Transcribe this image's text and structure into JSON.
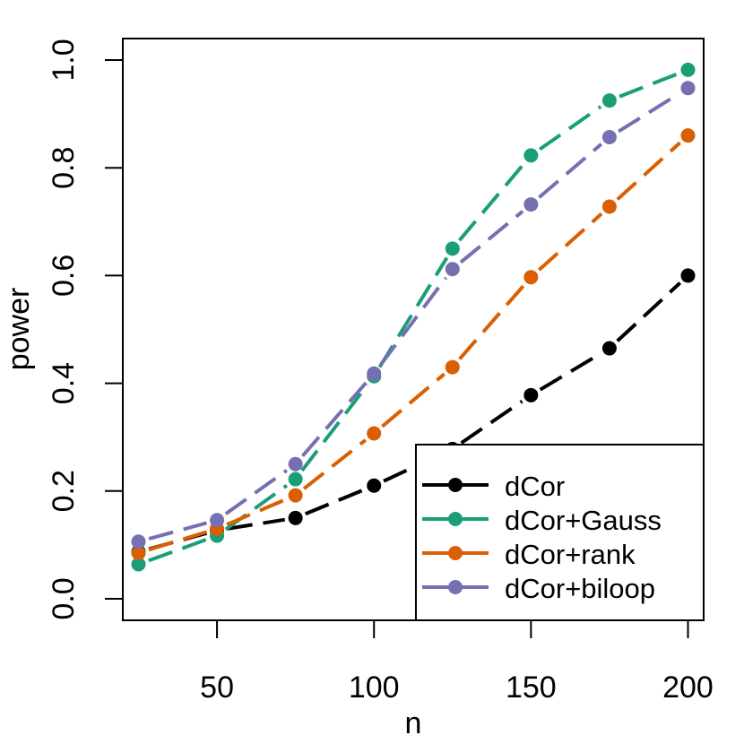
{
  "chart_data": {
    "type": "line",
    "title": "",
    "xlabel": "n",
    "ylabel": "power",
    "x": [
      25,
      50,
      75,
      100,
      125,
      150,
      175,
      200
    ],
    "xlim": [
      20,
      205
    ],
    "ylim": [
      -0.04,
      1.04
    ],
    "xticks": [
      50,
      100,
      150,
      200
    ],
    "yticks": [
      0.0,
      0.2,
      0.4,
      0.6,
      0.8,
      1.0
    ],
    "xtick_labels": [
      "50",
      "100",
      "150",
      "200"
    ],
    "ytick_labels": [
      "0.0",
      "0.2",
      "0.4",
      "0.6",
      "0.8",
      "1.0"
    ],
    "grid": false,
    "legend_position": "bottom-right",
    "series": [
      {
        "name": "dCor",
        "color": "#000000",
        "values": [
          0.087,
          0.127,
          0.15,
          0.21,
          0.278,
          0.378,
          0.465,
          0.6
        ]
      },
      {
        "name": "dCor+Gauss",
        "color": "#1B9E77",
        "values": [
          0.064,
          0.117,
          0.222,
          0.413,
          0.65,
          0.823,
          0.925,
          0.982
        ]
      },
      {
        "name": "dCor+rank",
        "color": "#D95F02",
        "values": [
          0.085,
          0.13,
          0.192,
          0.307,
          0.43,
          0.597,
          0.728,
          0.86
        ]
      },
      {
        "name": "dCor+biloop",
        "color": "#7570B3",
        "values": [
          0.106,
          0.146,
          0.25,
          0.418,
          0.612,
          0.732,
          0.857,
          0.948
        ]
      }
    ]
  }
}
